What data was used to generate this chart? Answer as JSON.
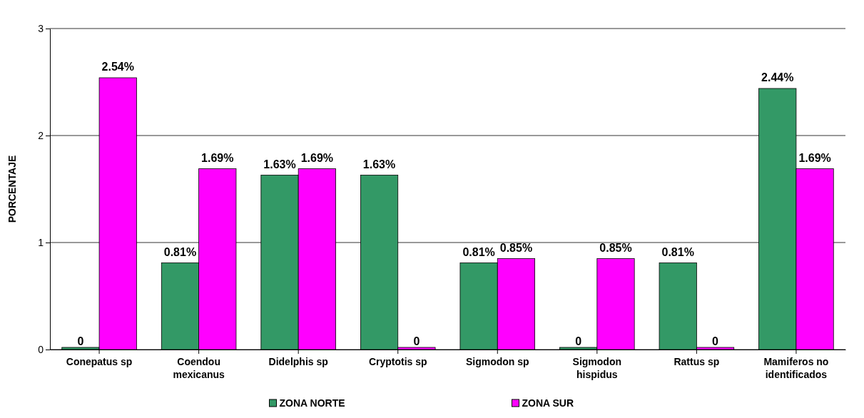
{
  "chart_data": {
    "type": "bar",
    "ylabel": "PORCENTAJE",
    "categories": [
      "Conepatus sp",
      "Coendou mexicanus",
      "Didelphis sp",
      "Cryptotis sp",
      "Sigmodon sp",
      "Sigmodon hispidus",
      "Rattus sp",
      "Mamiferos no identificados"
    ],
    "series": [
      {
        "name": "ZONA NORTE",
        "color": "#339966",
        "values": [
          0,
          0.81,
          1.63,
          1.63,
          0.81,
          0,
          0.81,
          2.44
        ],
        "value_labels": [
          "0",
          "0.81%",
          "1.63%",
          "1.63%",
          "0.81%",
          "0",
          "0.81%",
          "2.44%"
        ]
      },
      {
        "name": "ZONA SUR",
        "color": "#ff00ff",
        "values": [
          2.54,
          1.69,
          1.69,
          0,
          0.85,
          0.85,
          0,
          1.69
        ],
        "value_labels": [
          "2.54%",
          "1.69%",
          "1.69%",
          "0",
          "0.85%",
          "0.85%",
          "0",
          "1.69%"
        ]
      }
    ],
    "ylim": [
      0,
      3
    ],
    "yticks": [
      0,
      1,
      2,
      3
    ],
    "grid": "y",
    "legend": "bottom"
  }
}
